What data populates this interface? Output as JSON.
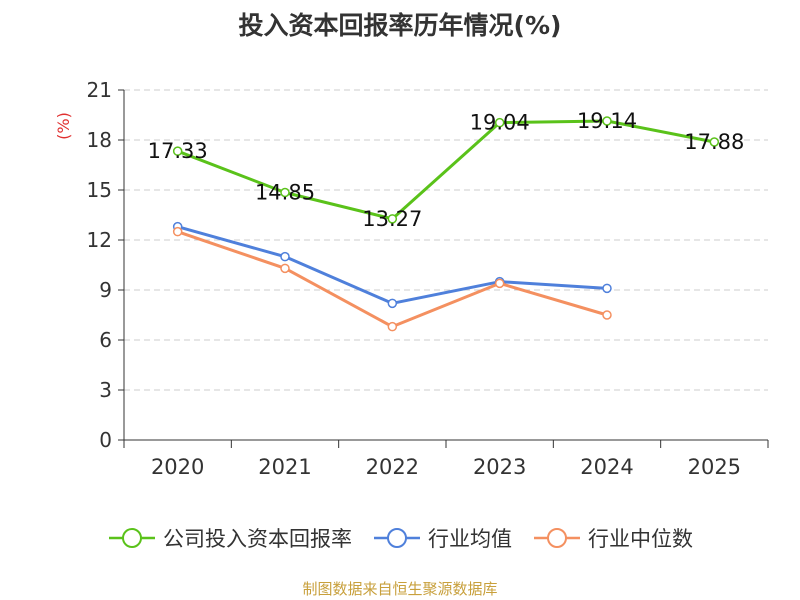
{
  "chart_data": {
    "type": "line",
    "title": "投入资本回报率历年情况(%)",
    "ylabel": "(%)",
    "xlabel": "",
    "categories": [
      "2020",
      "2021",
      "2022",
      "2023",
      "2024",
      "2025"
    ],
    "ylim": [
      0,
      21
    ],
    "yticks": [
      0,
      3,
      6,
      9,
      12,
      15,
      18,
      21
    ],
    "grid": true,
    "legend_position": "bottom",
    "series": [
      {
        "name": "公司投入资本回报率",
        "values": [
          17.33,
          14.85,
          13.27,
          19.04,
          19.14,
          17.88
        ],
        "color": "#5ac21a",
        "labels": [
          "17.33",
          "14.85",
          "13.27",
          "19.04",
          "19.14",
          "17.88"
        ]
      },
      {
        "name": "行业均值",
        "values": [
          12.8,
          11.0,
          8.2,
          9.5,
          9.1,
          null
        ],
        "color": "#4f80db"
      },
      {
        "name": "行业中位数",
        "values": [
          12.5,
          10.3,
          6.8,
          9.4,
          7.5,
          null
        ],
        "color": "#f49060"
      }
    ],
    "source": "制图数据来自恒生聚源数据库"
  }
}
